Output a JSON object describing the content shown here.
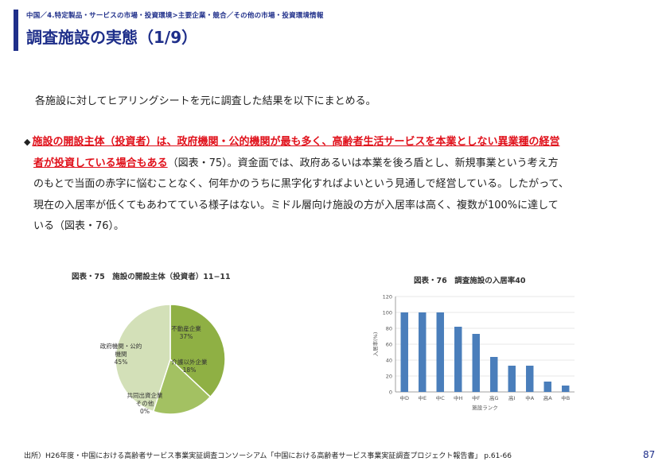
{
  "header": {
    "breadcrumb": "中国／4.特定製品・サービスの市場・投資環境>主要企業・競合／その他の市場・投資環境情報",
    "title": "調査施設の実態（1/9）"
  },
  "body": {
    "intro": "各施設に対してヒアリングシートを元に調査した結果を以下にまとめる。",
    "bullet_marker": "◆",
    "highlight_line1": "施設の開設主体（投資者）は、政府機関・公的機関が最も多く、高齢者生活サービスを本業としない異業種の経営",
    "highlight_line2": "者が投資している場合もある",
    "rest_line2": "（図表・75）。資金面では、政府あるいは本業を後ろ盾とし、新規事業という考え方",
    "line3": "のもとで当面の赤字に悩むことなく、何年かのうちに黒字化すればよいという見通しで経営している。したがって、",
    "line4": "現在の入居率が低くてもあわてている様子はない。ミドル層向け施設の方が入居率は高く、複数が100%に達して",
    "line5": "いる（図表・76）。"
  },
  "chart_data": [
    {
      "type": "pie",
      "title": "図表・75　施設の開設主体（投資者）11−11",
      "categories": [
        "不動産企業",
        "介護以外の企業",
        "共同出資企業・その他",
        "政府機関・公的機関"
      ],
      "values": [
        37,
        18,
        0,
        45
      ],
      "value_labels": [
        "37%",
        "18%",
        "0%",
        "45%"
      ],
      "slice_labels": [
        [
          "不動産企業",
          "37%"
        ],
        [
          "介護以外企業",
          "18%"
        ],
        [
          "共同出資企業",
          "その他",
          "0%"
        ],
        [
          "政府機関・公的",
          "機関",
          "45%"
        ]
      ],
      "colors": [
        "#8fb044",
        "#a3c162",
        "#ffffff",
        "#d3e0b8"
      ]
    },
    {
      "type": "bar",
      "title": "図表・76　調査施設の入居率40",
      "categories": [
        "中D",
        "中E",
        "中C",
        "中H",
        "中F",
        "高G",
        "高I",
        "中A",
        "高A",
        "中B"
      ],
      "values": [
        100,
        100,
        100,
        82,
        73,
        44,
        33,
        33,
        13,
        8
      ],
      "ylim": [
        0,
        120
      ],
      "yticks": [
        "0",
        "20",
        "40",
        "60",
        "80",
        "100",
        "120"
      ],
      "ylabel": "入居率(%)",
      "xlabel": "施設ランク",
      "colors": {
        "bar": "#4a7ebb",
        "grid": "#d0d0d0",
        "axis": "#888888"
      }
    }
  ],
  "footer": {
    "source": "出所）H26年度・中国における高齢者サービス事業実証調査コンソーシアム「中国における高齢者サービス事業実証調査プロジェクト報告書」 p.61-66",
    "page_number": "87"
  }
}
